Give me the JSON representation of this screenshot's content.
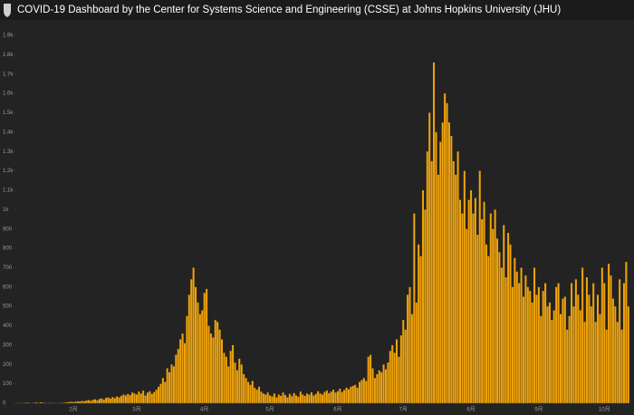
{
  "header": {
    "title": "COVID-19 Dashboard by the Center for Systems Science and Engineering (CSSE) at Johns Hopkins University (JHU)"
  },
  "chart_data": {
    "type": "bar",
    "color": "#f0a30a",
    "categories": [
      null,
      null,
      null,
      null,
      null,
      null,
      null,
      null,
      null,
      null,
      null,
      null,
      null,
      null,
      null,
      null,
      null,
      null,
      null,
      null,
      null,
      null,
      null,
      null,
      null,
      null,
      "2月",
      null,
      null,
      null,
      null,
      null,
      null,
      null,
      null,
      null,
      null,
      null,
      null,
      null,
      null,
      null,
      null,
      null,
      null,
      null,
      null,
      null,
      null,
      null,
      null,
      null,
      null,
      null,
      null,
      "3月",
      null,
      null,
      null,
      null,
      null,
      null,
      null,
      null,
      null,
      null,
      null,
      null,
      null,
      null,
      null,
      null,
      null,
      null,
      null,
      null,
      null,
      null,
      null,
      null,
      null,
      null,
      null,
      null,
      null,
      null,
      "4月",
      null,
      null,
      null,
      null,
      null,
      null,
      null,
      null,
      null,
      null,
      null,
      null,
      null,
      null,
      null,
      null,
      null,
      null,
      null,
      null,
      null,
      null,
      null,
      null,
      null,
      null,
      null,
      null,
      null,
      "5月",
      null,
      null,
      null,
      null,
      null,
      null,
      null,
      null,
      null,
      null,
      null,
      null,
      null,
      null,
      null,
      null,
      null,
      null,
      null,
      null,
      null,
      null,
      null,
      null,
      null,
      null,
      null,
      null,
      null,
      null,
      "6月",
      null,
      null,
      null,
      null,
      null,
      null,
      null,
      null,
      null,
      null,
      null,
      null,
      null,
      null,
      null,
      null,
      null,
      null,
      null,
      null,
      null,
      null,
      null,
      null,
      null,
      null,
      null,
      null,
      null,
      "7月",
      null,
      null,
      null,
      null,
      null,
      null,
      null,
      null,
      null,
      null,
      null,
      null,
      null,
      null,
      null,
      null,
      null,
      null,
      null,
      null,
      null,
      null,
      null,
      null,
      null,
      null,
      null,
      null,
      null,
      null,
      "8月",
      null,
      null,
      null,
      null,
      null,
      null,
      null,
      null,
      null,
      null,
      null,
      null,
      null,
      null,
      null,
      null,
      null,
      null,
      null,
      null,
      null,
      null,
      null,
      null,
      null,
      null,
      null,
      null,
      null,
      null,
      "9月",
      null,
      null,
      null,
      null,
      null,
      null,
      null,
      null,
      null,
      null,
      null,
      null,
      null,
      null,
      null,
      null,
      null,
      null,
      null,
      null,
      null,
      null,
      null,
      null,
      null,
      null,
      null,
      null,
      null,
      "10月",
      null,
      null,
      null,
      null,
      null,
      null,
      null,
      null,
      null,
      null,
      null
    ],
    "values": [
      0,
      0,
      1,
      0,
      2,
      3,
      1,
      0,
      2,
      4,
      1,
      5,
      3,
      2,
      0,
      2,
      0,
      1,
      0,
      0,
      1,
      2,
      3,
      5,
      6,
      8,
      6,
      8,
      10,
      9,
      12,
      10,
      14,
      16,
      12,
      18,
      20,
      15,
      22,
      25,
      18,
      28,
      30,
      24,
      32,
      26,
      35,
      30,
      38,
      45,
      40,
      48,
      42,
      55,
      50,
      45,
      60,
      50,
      65,
      40,
      55,
      62,
      48,
      58,
      70,
      85,
      100,
      130,
      110,
      180,
      160,
      200,
      190,
      250,
      280,
      330,
      360,
      310,
      450,
      560,
      640,
      700,
      600,
      520,
      460,
      480,
      570,
      590,
      400,
      360,
      340,
      430,
      420,
      380,
      330,
      260,
      240,
      190,
      270,
      300,
      210,
      170,
      230,
      200,
      150,
      130,
      110,
      95,
      115,
      80,
      70,
      85,
      60,
      50,
      45,
      55,
      40,
      35,
      50,
      30,
      45,
      38,
      55,
      42,
      30,
      48,
      36,
      52,
      40,
      34,
      60,
      45,
      38,
      50,
      44,
      56,
      40,
      48,
      62,
      50,
      45,
      58,
      66,
      52,
      60,
      70,
      55,
      62,
      75,
      58,
      68,
      80,
      72,
      85,
      90,
      95,
      80,
      110,
      120,
      130,
      115,
      240,
      250,
      180,
      130,
      150,
      170,
      160,
      200,
      175,
      210,
      270,
      300,
      260,
      330,
      240,
      350,
      430,
      380,
      560,
      600,
      460,
      980,
      520,
      820,
      760,
      1100,
      1000,
      1300,
      1500,
      1250,
      1760,
      1400,
      1180,
      1350,
      1450,
      1600,
      1550,
      1450,
      1380,
      1250,
      1180,
      1300,
      1050,
      980,
      1200,
      900,
      1050,
      1100,
      980,
      1060,
      870,
      1200,
      950,
      1040,
      820,
      760,
      980,
      900,
      1000,
      850,
      780,
      700,
      920,
      650,
      880,
      820,
      600,
      750,
      680,
      620,
      700,
      550,
      660,
      600,
      580,
      520,
      700,
      560,
      600,
      450,
      580,
      620,
      500,
      520,
      430,
      480,
      600,
      620,
      460,
      540,
      550,
      380,
      450,
      620,
      500,
      640,
      560,
      480,
      700,
      420,
      650,
      560,
      500,
      620,
      420,
      560,
      460,
      700,
      620,
      380,
      720,
      660,
      540,
      500,
      420,
      640,
      380,
      620,
      730,
      500
    ],
    "ylim": [
      0,
      1900
    ],
    "yticks": [
      0,
      100,
      200,
      300,
      400,
      500,
      600,
      700,
      800,
      900,
      {
        "value": 1000,
        "label": "1k"
      },
      {
        "value": 1100,
        "label": "1.1k"
      },
      {
        "value": 1200,
        "label": "1.2k"
      },
      {
        "value": 1300,
        "label": "1.3k"
      },
      {
        "value": 1400,
        "label": "1.4k"
      },
      {
        "value": 1500,
        "label": "1.5k"
      },
      {
        "value": 1600,
        "label": "1.6k"
      },
      {
        "value": 1700,
        "label": "1.7k"
      },
      {
        "value": 1800,
        "label": "1.8k"
      },
      {
        "value": 1900,
        "label": "1.9k"
      }
    ]
  }
}
